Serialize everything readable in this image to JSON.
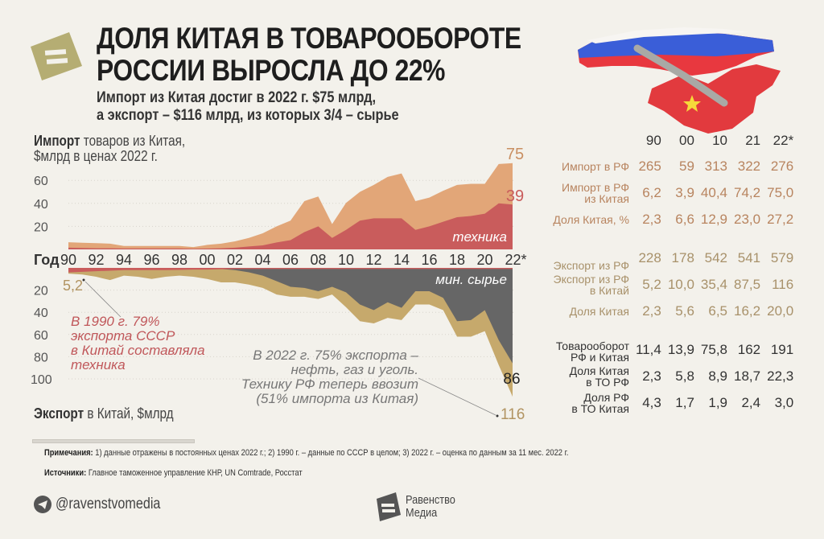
{
  "header": {
    "title_line1": "ДОЛЯ КИТАЯ В ТОВАРООБОРОТЕ",
    "title_line2": "РОССИИ ВЫРОСЛА ДО 22%",
    "subtitle_line1": "Импорт из Китая достиг в 2022 г. $75 млрд,",
    "subtitle_line2": "а экспорт – $116 млрд, из которых 3/4 – сырье",
    "logo_icon": "equals-logo-icon",
    "map_icon": "russia-china-pipeline-map"
  },
  "colors": {
    "background": "#f3f1eb",
    "import_total": "#e2a678",
    "import_tech": "#c95c5c",
    "export_total": "#c6a96c",
    "export_minerals": "#666666",
    "logo": "#b5ad73"
  },
  "chart_data": {
    "type": "area",
    "import_axis_title_bold": "Импорт",
    "import_axis_title_rest": " товаров из Китая,",
    "import_axis_title_line2": "$млрд в ценах 2022 г.",
    "export_axis_title_bold": "Экспорт",
    "export_axis_title_rest": " в Китай, $млрд",
    "year_label": "Год",
    "x_ticks": [
      "90",
      "92",
      "94",
      "96",
      "98",
      "00",
      "02",
      "04",
      "06",
      "08",
      "10",
      "12",
      "14",
      "16",
      "18",
      "20",
      "22*"
    ],
    "x": [
      1990,
      1991,
      1992,
      1993,
      1994,
      1995,
      1996,
      1997,
      1998,
      1999,
      2000,
      2001,
      2002,
      2003,
      2004,
      2005,
      2006,
      2007,
      2008,
      2009,
      2010,
      2011,
      2012,
      2013,
      2014,
      2015,
      2016,
      2017,
      2018,
      2019,
      2020,
      2021,
      2022
    ],
    "import_yticks": [
      "20",
      "40",
      "60"
    ],
    "export_yticks": [
      "20",
      "40",
      "60",
      "80",
      "100"
    ],
    "import_series": [
      {
        "name": "",
        "values": [
          6.2,
          5.8,
          5.4,
          5,
          3,
          3,
          3,
          3,
          3,
          2,
          3.9,
          5,
          7,
          10,
          14,
          20,
          25,
          42,
          46,
          22,
          40.4,
          50,
          56,
          63,
          66,
          42,
          45,
          51,
          56,
          57,
          57,
          74.2,
          75
        ]
      },
      {
        "name": "техника",
        "values": [
          1.5,
          1.2,
          1,
          1,
          0.8,
          0.8,
          0.8,
          0.8,
          0.8,
          0.5,
          0.7,
          1,
          1.5,
          2.5,
          3.5,
          6,
          8,
          15,
          20,
          10,
          17,
          25,
          27,
          27,
          27,
          17,
          20,
          24,
          28,
          29,
          31,
          40,
          39
        ]
      }
    ],
    "export_series": [
      {
        "name": "",
        "values": [
          5.2,
          6,
          8,
          11,
          7,
          8,
          10,
          8,
          7,
          8,
          10,
          13,
          13,
          15,
          18,
          24,
          26,
          26,
          28,
          24,
          35.4,
          48,
          50,
          45,
          47,
          33,
          33,
          38,
          62,
          62,
          57,
          87.5,
          116
        ]
      },
      {
        "name": "мин. сырье",
        "values": [
          0.5,
          0.5,
          0.5,
          0.5,
          0.5,
          0.5,
          0.5,
          0.5,
          0.5,
          0.5,
          0.8,
          1,
          2,
          4,
          7,
          12,
          17,
          18,
          21,
          17,
          22,
          33,
          38,
          31,
          36,
          21,
          21,
          27,
          48,
          47,
          38,
          65,
          86
        ]
      },
      {
        "name": "техника",
        "values": [
          4.1,
          3.5,
          3,
          2.5,
          2,
          2,
          2,
          2,
          1.8,
          1.5,
          1.5,
          1.2,
          1,
          1,
          1,
          1,
          1,
          1,
          1,
          1,
          1,
          1,
          1,
          1,
          1,
          1,
          1,
          1,
          1,
          1,
          1,
          1,
          1
        ]
      }
    ],
    "labels": {
      "import_total_end": "75",
      "import_tech_end": "39",
      "import_tech_name": "техника",
      "export_minerals_name": "мин. сырье",
      "export_start": "5,2",
      "export_minerals_end": "86",
      "export_total_end": "116"
    },
    "annotations": {
      "left": [
        "В 1990 г. 79%",
        "экспорта СССР",
        "в Китай составляла",
        "техника"
      ],
      "right": [
        "В 2022 г. 75% экспорта –",
        "нефть, газ и уголь.",
        "Технику РФ теперь ввозит",
        "(51% импорта из Китая)"
      ]
    }
  },
  "table": {
    "columns": [
      "90",
      "00",
      "10",
      "21",
      "22*"
    ],
    "rows": [
      {
        "group": "imp",
        "label1": "Импорт в РФ",
        "label2": "",
        "values": [
          "265",
          "59",
          "313",
          "322",
          "276"
        ]
      },
      {
        "group": "imp",
        "label1": "Импорт в РФ",
        "label2": "из Китая",
        "values": [
          "6,2",
          "3,9",
          "40,4",
          "74,2",
          "75,0"
        ]
      },
      {
        "group": "imp",
        "label1": "Доля Китая, %",
        "label2": "",
        "values": [
          "2,3",
          "6,6",
          "12,9",
          "23,0",
          "27,2"
        ]
      },
      {
        "group": "exp",
        "label1": "Экспорт из РФ",
        "label2": "",
        "values": [
          "228",
          "178",
          "542",
          "541",
          "579"
        ]
      },
      {
        "group": "exp",
        "label1": "Экспорт из РФ",
        "label2": "в Китай",
        "values": [
          "5,2",
          "10,0",
          "35,4",
          "87,5",
          "116"
        ]
      },
      {
        "group": "exp",
        "label1": "Доля Китая",
        "label2": "",
        "values": [
          "2,3",
          "5,6",
          "6,5",
          "16,2",
          "20,0"
        ]
      },
      {
        "group": "tot",
        "label1": "Товарооборот",
        "label2": "РФ и Китая",
        "values": [
          "11,4",
          "13,9",
          "75,8",
          "162",
          "191"
        ]
      },
      {
        "group": "tot",
        "label1": "Доля Китая",
        "label2": "в ТО РФ",
        "values": [
          "2,3",
          "5,8",
          "8,9",
          "18,7",
          "22,3"
        ]
      },
      {
        "group": "tot",
        "label1": "Доля РФ",
        "label2": "в ТО Китая",
        "values": [
          "4,3",
          "1,7",
          "1,9",
          "2,4",
          "3,0"
        ]
      }
    ]
  },
  "footer": {
    "notes_label": "Примечания:",
    "notes_text": " 1) данные отражены в постоянных ценах 2022 г.; 2) 1990 г. – данные по СССР в целом; 3) 2022 г. – оценка по данным за 11 мес. 2022 г.",
    "sources_label": "Источники:",
    "sources_text": " Главное таможенное управление КНР, UN Comtrade, Росстат",
    "telegram_handle": "@ravenstvomedia",
    "telegram_icon": "telegram-icon",
    "brand_line1": "Равенство",
    "brand_line2": "Медиа"
  }
}
